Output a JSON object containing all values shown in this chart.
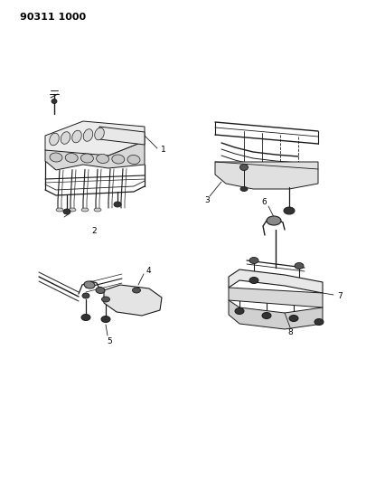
{
  "title": "90311 1000",
  "bg": "#ffffff",
  "lc": "#1a1a1a",
  "tc": "#000000",
  "figsize": [
    4.06,
    5.33
  ],
  "dpi": 100
}
